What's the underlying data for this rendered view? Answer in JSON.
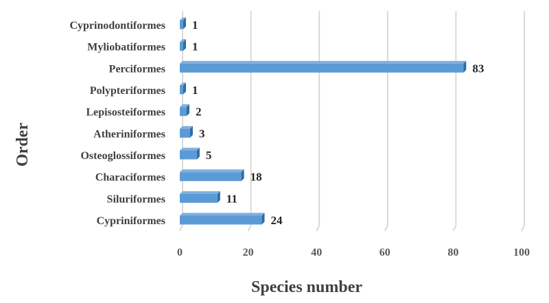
{
  "chart_data": {
    "type": "bar",
    "orientation": "horizontal",
    "title": "",
    "xlabel": "Species number",
    "ylabel": "Order",
    "categories": [
      "Cypriniformes",
      "Siluriformes",
      "Characiformes",
      "Osteoglossiformes",
      "Atheriniformes",
      "Lepisosteiformes",
      "Polypteriformes",
      "Perciformes",
      "Myliobatiformes",
      "Cyprinodontiformes"
    ],
    "values": [
      24,
      11,
      18,
      5,
      3,
      2,
      1,
      83,
      1,
      1
    ],
    "xlim": [
      0,
      100
    ],
    "xticks": [
      "0",
      "20",
      "40",
      "60",
      "80",
      "100"
    ],
    "grid": true,
    "bar_color": "#5b9bd5",
    "bar_shade_color": "#2e6da4"
  }
}
